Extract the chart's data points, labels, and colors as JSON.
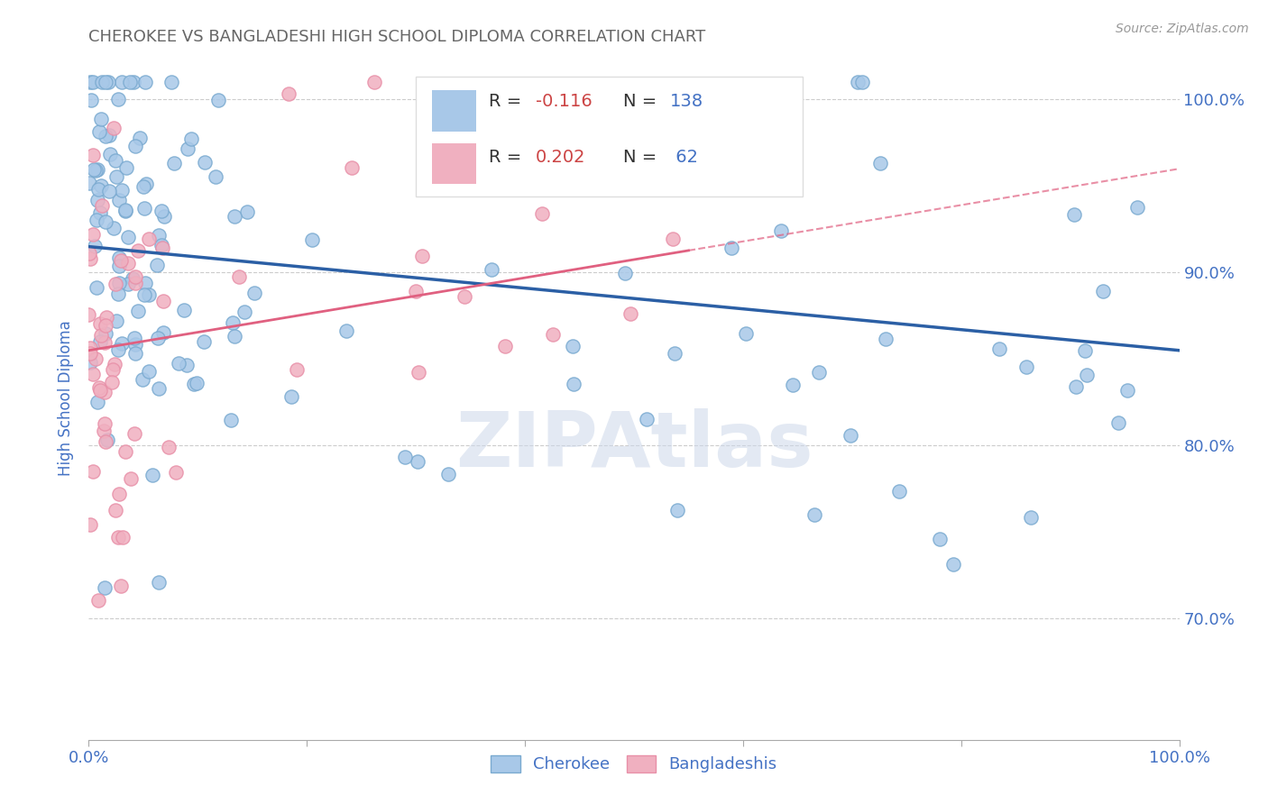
{
  "title": "CHEROKEE VS BANGLADESHI HIGH SCHOOL DIPLOMA CORRELATION CHART",
  "source_text": "Source: ZipAtlas.com",
  "ylabel": "High School Diploma",
  "blue_color": "#a8c8e8",
  "pink_color": "#f0b0c0",
  "blue_edge_color": "#7aaad0",
  "pink_edge_color": "#e890a8",
  "blue_line_color": "#2b5fa5",
  "pink_line_color": "#e06080",
  "watermark": "ZIPAtlas",
  "title_color": "#666666",
  "axis_label_color": "#4472c4",
  "r_color": "#cc4444",
  "n_color": "#4472c4",
  "xlim": [
    0.0,
    1.0
  ],
  "ylim": [
    0.63,
    1.025
  ],
  "blue_line_x0": 0.0,
  "blue_line_y0": 0.915,
  "blue_line_x1": 1.0,
  "blue_line_y1": 0.855,
  "pink_line_x0": 0.0,
  "pink_line_y0": 0.855,
  "pink_line_x1": 1.0,
  "pink_line_y1": 0.96
}
